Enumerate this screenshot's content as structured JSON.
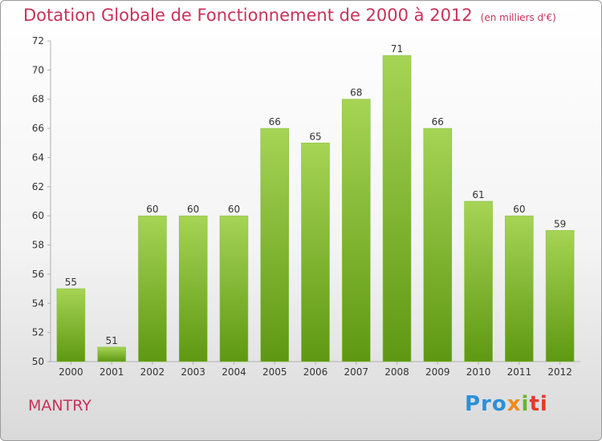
{
  "title": "Dotation Globale de Fonctionnement de 2000 à 2012",
  "unit": "(en milliers d'€)",
  "commune": "MANTRY",
  "logo": {
    "a": "Pro",
    "b": "x",
    "c": "i",
    "d": "ti"
  },
  "colors": {
    "bar_light": "#a2d14f",
    "bar_dark": "#5f9a12",
    "title": "#c8325a"
  },
  "chart_data": {
    "type": "bar",
    "title": "Dotation Globale de Fonctionnement de 2000 à 2012",
    "subtitle": "(en milliers d'€)",
    "categories": [
      "2000",
      "2001",
      "2002",
      "2003",
      "2004",
      "2005",
      "2006",
      "2007",
      "2008",
      "2009",
      "2010",
      "2011",
      "2012"
    ],
    "values": [
      55,
      51,
      60,
      60,
      60,
      66,
      65,
      68,
      71,
      66,
      61,
      60,
      59
    ],
    "ylim": [
      50,
      72
    ],
    "yticks": [
      50,
      52,
      54,
      56,
      58,
      60,
      62,
      64,
      66,
      68,
      70,
      72
    ],
    "grid": false,
    "xlabel": "",
    "ylabel": ""
  }
}
